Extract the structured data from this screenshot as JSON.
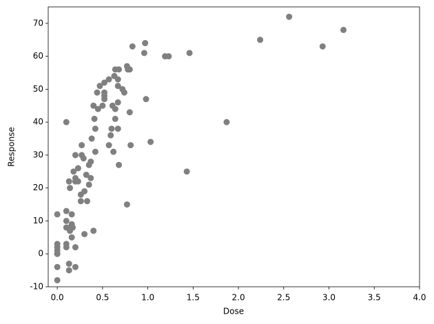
{
  "chart_data": {
    "type": "scatter",
    "x_label": "Dose",
    "y_label": "Response",
    "color": "#808080",
    "x": [
      0,
      0,
      0,
      0,
      0,
      0,
      0,
      0,
      0,
      0.1,
      0.1,
      0.1,
      0.1,
      0.1,
      0.1,
      0.13,
      0.14,
      0.13,
      0.13,
      0.14,
      0.14,
      0.16,
      0.16,
      0.16,
      0.17,
      0.18,
      0.2,
      0.2,
      0.2,
      0.2,
      0.2,
      0.23,
      0.23,
      0.26,
      0.26,
      0.27,
      0.27,
      0.29,
      0.3,
      0.3,
      0.32,
      0.33,
      0.35,
      0.35,
      0.37,
      0.37,
      0.38,
      0.4,
      0.4,
      0.41,
      0.42,
      0.42,
      0.44,
      0.45,
      0.47,
      0.5,
      0.52,
      0.52,
      0.52,
      0.52,
      0.57,
      0.57,
      0.59,
      0.6,
      0.61,
      0.62,
      0.63,
      0.64,
      0.64,
      0.64,
      0.67,
      0.67,
      0.67,
      0.67,
      0.68,
      0.68,
      0.72,
      0.74,
      0.77,
      0.77,
      0.78,
      0.8,
      0.8,
      0.81,
      0.83,
      0.96,
      0.97,
      0.98,
      1.03,
      1.19,
      1.23,
      1.43,
      1.46,
      1.87,
      2.24,
      2.56,
      2.93,
      3.16
    ],
    "y": [
      0,
      0,
      1,
      2,
      3,
      -4,
      -8,
      12,
      0,
      40,
      13,
      10,
      8,
      3,
      2,
      22,
      20,
      -3,
      -5,
      8,
      7,
      12,
      9,
      5,
      8,
      25,
      30,
      23,
      22,
      2,
      -4,
      26,
      22,
      18,
      16,
      30,
      33,
      29,
      19,
      6,
      24,
      16,
      27,
      21,
      28,
      23,
      35,
      7,
      45,
      41,
      38,
      31,
      49,
      44,
      51,
      45,
      52,
      49,
      48,
      47,
      53,
      33,
      36,
      38,
      45,
      31,
      54,
      44,
      41,
      56,
      53,
      51,
      46,
      38,
      27,
      56,
      50,
      49,
      15,
      57,
      56,
      56,
      43,
      33,
      63,
      61,
      64,
      47,
      34,
      60,
      60,
      25,
      61,
      40,
      65,
      72,
      63,
      68
    ],
    "xlim": [
      -0.1,
      4.0
    ],
    "ylim": [
      -10,
      75
    ],
    "xticks": [
      {
        "value": 0,
        "label": "0.0"
      },
      {
        "value": 0.5,
        "label": "0.5"
      },
      {
        "value": 1,
        "label": "1.0"
      },
      {
        "value": 1.5,
        "label": "1.5"
      },
      {
        "value": 2,
        "label": "2.0"
      },
      {
        "value": 2.5,
        "label": "2.5"
      },
      {
        "value": 3,
        "label": "3.0"
      },
      {
        "value": 3.5,
        "label": "3.5"
      },
      {
        "value": 4,
        "label": "4.0"
      }
    ],
    "yticks": [
      -10,
      0,
      10,
      20,
      30,
      40,
      50,
      60,
      70
    ]
  }
}
